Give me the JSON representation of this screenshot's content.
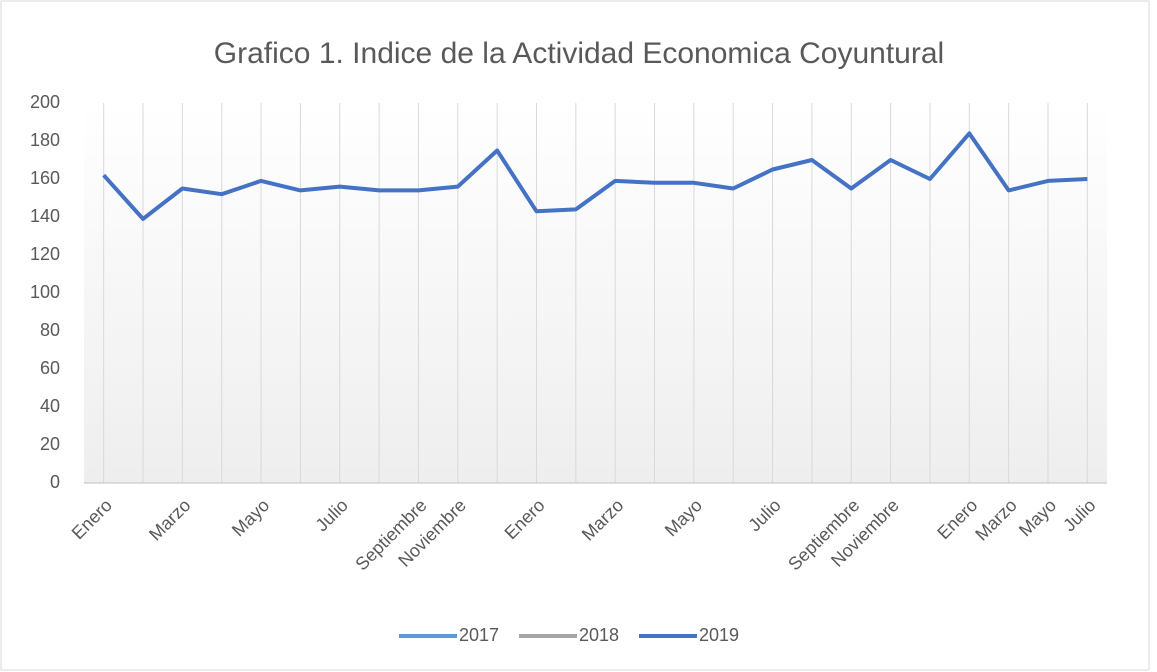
{
  "chart_data": {
    "type": "line",
    "title": "Grafico 1. Indice de la Actividad Economica Coyuntural",
    "categories": [
      "Enero",
      null,
      "Marzo",
      null,
      "Mayo",
      null,
      "Julio",
      null,
      "Septiembre",
      "Noviembre",
      null,
      "Enero",
      null,
      "Marzo",
      null,
      "Mayo",
      null,
      "Julio",
      null,
      "Septiembre",
      "Noviembre",
      null,
      "Enero",
      "Marzo",
      "Mayo",
      "Julio"
    ],
    "series": [
      {
        "name": "2017",
        "color": "#5b9bd5",
        "values": [
          null,
          null,
          null,
          null,
          null,
          null,
          null,
          null,
          null,
          null,
          null,
          null,
          null,
          null,
          null,
          null,
          null,
          null,
          null,
          null,
          null,
          null,
          null,
          null,
          null,
          null
        ]
      },
      {
        "name": "2018",
        "color": "#a5a5a5",
        "values": [
          null,
          null,
          null,
          null,
          null,
          null,
          null,
          null,
          null,
          null,
          null,
          null,
          null,
          null,
          null,
          null,
          null,
          null,
          null,
          null,
          null,
          null,
          null,
          null,
          null,
          null
        ]
      },
      {
        "name": "2019",
        "color": "#4472c4",
        "values": [
          162,
          139,
          155,
          152,
          159,
          154,
          156,
          154,
          154,
          156,
          175,
          143,
          144,
          159,
          158,
          158,
          155,
          165,
          170,
          155,
          170,
          160,
          184,
          154,
          159,
          160
        ]
      }
    ],
    "ylim": [
      0,
      200
    ],
    "yticks": [
      0,
      20,
      40,
      60,
      80,
      100,
      120,
      140,
      160,
      180,
      200
    ],
    "grid": true,
    "legend": "bottom"
  }
}
